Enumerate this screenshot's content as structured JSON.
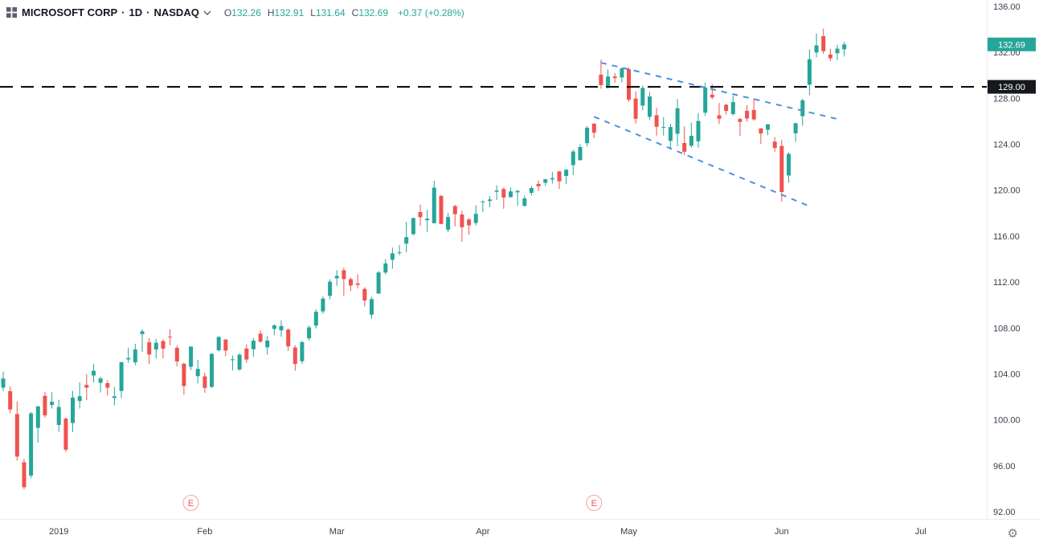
{
  "legend": {
    "symbol": "MICROSOFT CORP",
    "separator": "·",
    "interval": "1D",
    "exchange": "NASDAQ",
    "ohlc": [
      {
        "label": "O",
        "value": "132.26"
      },
      {
        "label": "H",
        "value": "132.91"
      },
      {
        "label": "L",
        "value": "131.64"
      },
      {
        "label": "C",
        "value": "132.69"
      }
    ],
    "change": "+0.37 (+0.28%)",
    "value_color": "#26a69a"
  },
  "price_axis": {
    "ticks": [
      136,
      132,
      128,
      124,
      120,
      116,
      112,
      108,
      104,
      100,
      96,
      92
    ],
    "badges": [
      {
        "name": "last-price-badge",
        "value": "132.69",
        "price": 132.69,
        "bg": "#26a69a",
        "fg": "#ffffff"
      },
      {
        "name": "level-price-badge",
        "value": "129.00",
        "price": 129.0,
        "bg": "#16181e",
        "fg": "#ffffff"
      }
    ]
  },
  "time_axis": {
    "ticks": [
      {
        "label": "2019",
        "index": 8
      },
      {
        "label": "Feb",
        "index": 29
      },
      {
        "label": "Mar",
        "index": 48
      },
      {
        "label": "Apr",
        "index": 69
      },
      {
        "label": "May",
        "index": 90
      },
      {
        "label": "Jun",
        "index": 112
      },
      {
        "label": "Jul",
        "index": 132
      }
    ]
  },
  "chart_data": {
    "type": "candlestick",
    "title": "MICROSOFT CORP",
    "interval": "1D",
    "exchange": "NASDAQ",
    "price_range": {
      "min": 92,
      "max": 136
    },
    "colors": {
      "up": "#26a69a",
      "down": "#ef5350"
    },
    "columns": [
      "date",
      "open",
      "high",
      "low",
      "close"
    ],
    "candles": [
      [
        "2018-12-19",
        102.8,
        104.2,
        102.5,
        103.6
      ],
      [
        "2018-12-20",
        102.5,
        102.9,
        100.6,
        100.9
      ],
      [
        "2018-12-21",
        100.5,
        101.6,
        96.46,
        96.8
      ],
      [
        "2018-12-24",
        96.3,
        96.6,
        93.96,
        94.13
      ],
      [
        "2018-12-26",
        95.14,
        100.69,
        94.9,
        100.56
      ],
      [
        "2018-12-27",
        99.3,
        101.19,
        98.0,
        101.18
      ],
      [
        "2018-12-28",
        102.09,
        102.41,
        100.2,
        100.39
      ],
      [
        "2018-12-31",
        101.29,
        102.4,
        100.98,
        101.57
      ],
      [
        "2019-01-02",
        99.55,
        101.75,
        98.94,
        101.12
      ],
      [
        "2019-01-03",
        100.1,
        100.19,
        97.2,
        97.4
      ],
      [
        "2019-01-04",
        99.72,
        102.51,
        98.93,
        101.93
      ],
      [
        "2019-01-07",
        101.64,
        103.27,
        100.98,
        102.06
      ],
      [
        "2019-01-08",
        103.04,
        103.97,
        101.71,
        102.8
      ],
      [
        "2019-01-09",
        103.86,
        104.88,
        103.24,
        104.27
      ],
      [
        "2019-01-10",
        103.22,
        103.75,
        102.38,
        103.6
      ],
      [
        "2019-01-11",
        103.19,
        103.44,
        102.11,
        102.8
      ],
      [
        "2019-01-14",
        101.9,
        102.87,
        101.26,
        102.05
      ],
      [
        "2019-01-15",
        102.51,
        105.05,
        101.88,
        105.01
      ],
      [
        "2019-01-16",
        105.26,
        106.26,
        104.96,
        105.38
      ],
      [
        "2019-01-17",
        105.0,
        106.63,
        104.76,
        106.12
      ],
      [
        "2019-01-18",
        107.46,
        107.9,
        105.91,
        107.71
      ],
      [
        "2019-01-22",
        106.75,
        107.1,
        104.86,
        105.68
      ],
      [
        "2019-01-23",
        106.12,
        107.04,
        105.34,
        106.71
      ],
      [
        "2019-01-24",
        106.86,
        107.0,
        105.34,
        106.2
      ],
      [
        "2019-01-25",
        107.24,
        107.88,
        106.5,
        107.17
      ],
      [
        "2019-01-28",
        106.26,
        106.48,
        104.66,
        105.08
      ],
      [
        "2019-01-29",
        104.88,
        104.97,
        102.17,
        102.94
      ],
      [
        "2019-01-30",
        104.62,
        106.38,
        104.33,
        106.38
      ],
      [
        "2019-01-31",
        103.8,
        105.22,
        103.18,
        104.43
      ],
      [
        "2019-02-01",
        103.78,
        104.1,
        102.35,
        102.78
      ],
      [
        "2019-02-04",
        102.87,
        105.8,
        102.77,
        105.74
      ],
      [
        "2019-02-05",
        106.06,
        107.27,
        105.96,
        107.22
      ],
      [
        "2019-02-06",
        107.0,
        107.0,
        105.53,
        106.03
      ],
      [
        "2019-02-07",
        105.19,
        105.59,
        104.29,
        105.27
      ],
      [
        "2019-02-08",
        104.39,
        105.78,
        104.26,
        105.67
      ],
      [
        "2019-02-11",
        106.2,
        106.58,
        104.97,
        105.25
      ],
      [
        "2019-02-12",
        106.14,
        107.14,
        105.48,
        106.89
      ],
      [
        "2019-02-13",
        107.5,
        107.78,
        106.71,
        106.81
      ],
      [
        "2019-02-14",
        106.31,
        107.29,
        105.66,
        106.9
      ],
      [
        "2019-02-15",
        107.91,
        108.3,
        107.36,
        108.22
      ],
      [
        "2019-02-19",
        107.79,
        108.66,
        107.23,
        108.17
      ],
      [
        "2019-02-20",
        107.86,
        107.94,
        106.0,
        106.4
      ],
      [
        "2019-02-21",
        106.3,
        106.5,
        104.28,
        104.86
      ],
      [
        "2019-02-22",
        105.1,
        106.9,
        104.85,
        106.76
      ],
      [
        "2019-02-25",
        107.1,
        108.2,
        106.9,
        108.05
      ],
      [
        "2019-02-26",
        108.2,
        109.62,
        107.95,
        109.41
      ],
      [
        "2019-02-27",
        109.45,
        110.75,
        109.22,
        110.56
      ],
      [
        "2019-02-28",
        110.8,
        112.23,
        110.5,
        112.03
      ],
      [
        "2019-03-01",
        112.33,
        113.02,
        111.67,
        112.53
      ],
      [
        "2019-03-04",
        113.02,
        113.25,
        110.8,
        112.26
      ],
      [
        "2019-03-05",
        112.25,
        112.39,
        111.23,
        111.7
      ],
      [
        "2019-03-06",
        111.87,
        112.66,
        111.43,
        111.75
      ],
      [
        "2019-03-07",
        111.4,
        111.55,
        109.87,
        110.39
      ],
      [
        "2019-03-08",
        109.16,
        110.71,
        108.8,
        110.51
      ],
      [
        "2019-03-11",
        110.99,
        112.95,
        110.98,
        112.83
      ],
      [
        "2019-03-12",
        112.82,
        113.99,
        112.65,
        113.62
      ],
      [
        "2019-03-13",
        113.94,
        115.0,
        113.16,
        114.5
      ],
      [
        "2019-03-14",
        114.54,
        115.2,
        114.33,
        114.59
      ],
      [
        "2019-03-15",
        115.34,
        117.25,
        114.59,
        115.91
      ],
      [
        "2019-03-18",
        116.17,
        117.61,
        116.05,
        117.57
      ],
      [
        "2019-03-19",
        118.09,
        118.75,
        116.88,
        117.65
      ],
      [
        "2019-03-20",
        117.39,
        118.28,
        116.38,
        117.52
      ],
      [
        "2019-03-21",
        117.13,
        120.82,
        117.09,
        120.22
      ],
      [
        "2019-03-22",
        119.5,
        119.59,
        117.04,
        117.05
      ],
      [
        "2019-03-25",
        116.56,
        118.01,
        116.32,
        117.66
      ],
      [
        "2019-03-26",
        118.62,
        118.71,
        116.85,
        117.91
      ],
      [
        "2019-03-27",
        117.88,
        118.21,
        115.52,
        116.77
      ],
      [
        "2019-03-28",
        117.44,
        117.58,
        116.13,
        116.93
      ],
      [
        "2019-03-29",
        117.14,
        118.69,
        116.93,
        117.94
      ],
      [
        "2019-04-01",
        118.95,
        119.11,
        118.1,
        119.02
      ],
      [
        "2019-04-02",
        119.06,
        119.48,
        118.52,
        119.19
      ],
      [
        "2019-04-03",
        119.86,
        120.43,
        119.15,
        119.97
      ],
      [
        "2019-04-04",
        120.1,
        120.23,
        118.38,
        119.36
      ],
      [
        "2019-04-05",
        119.39,
        120.23,
        119.37,
        119.89
      ],
      [
        "2019-04-08",
        119.81,
        120.02,
        118.64,
        119.93
      ],
      [
        "2019-04-09",
        118.63,
        119.54,
        118.58,
        119.28
      ],
      [
        "2019-04-10",
        119.76,
        120.35,
        119.54,
        120.19
      ],
      [
        "2019-04-11",
        120.54,
        120.85,
        119.92,
        120.33
      ],
      [
        "2019-04-12",
        120.64,
        120.98,
        120.37,
        120.95
      ],
      [
        "2019-04-15",
        120.94,
        121.58,
        120.57,
        121.05
      ],
      [
        "2019-04-16",
        121.64,
        121.65,
        120.1,
        120.77
      ],
      [
        "2019-04-17",
        121.24,
        121.85,
        120.54,
        121.77
      ],
      [
        "2019-04-18",
        122.19,
        123.52,
        121.3,
        123.37
      ],
      [
        "2019-04-22",
        122.62,
        124.0,
        122.57,
        123.76
      ],
      [
        "2019-04-23",
        124.1,
        125.58,
        123.83,
        125.44
      ],
      [
        "2019-04-24",
        125.79,
        125.85,
        124.52,
        125.01
      ],
      [
        "2019-04-25",
        130.06,
        131.37,
        128.83,
        129.15
      ],
      [
        "2019-04-26",
        129.07,
        130.52,
        128.83,
        129.89
      ],
      [
        "2019-04-29",
        129.9,
        130.18,
        129.35,
        129.77
      ],
      [
        "2019-04-30",
        129.81,
        130.7,
        129.39,
        130.6
      ],
      [
        "2019-05-01",
        130.53,
        130.65,
        127.7,
        127.88
      ],
      [
        "2019-05-02",
        127.98,
        128.61,
        125.8,
        126.21
      ],
      [
        "2019-05-03",
        127.36,
        129.1,
        126.96,
        128.9
      ],
      [
        "2019-05-06",
        126.39,
        128.56,
        126.11,
        128.15
      ],
      [
        "2019-05-07",
        126.52,
        127.18,
        124.74,
        125.52
      ],
      [
        "2019-05-08",
        125.44,
        126.37,
        124.75,
        125.51
      ],
      [
        "2019-05-09",
        124.29,
        125.79,
        123.57,
        125.5
      ],
      [
        "2019-05-10",
        124.91,
        127.93,
        123.82,
        127.13
      ],
      [
        "2019-05-13",
        124.11,
        125.55,
        123.04,
        123.35
      ],
      [
        "2019-05-14",
        123.87,
        125.88,
        123.7,
        124.73
      ],
      [
        "2019-05-15",
        124.26,
        126.71,
        123.7,
        126.02
      ],
      [
        "2019-05-16",
        126.75,
        129.38,
        126.46,
        128.93
      ],
      [
        "2019-05-17",
        128.31,
        129.25,
        127.92,
        128.07
      ],
      [
        "2019-05-20",
        126.52,
        127.59,
        125.76,
        126.22
      ],
      [
        "2019-05-21",
        127.43,
        127.53,
        126.58,
        126.9
      ],
      [
        "2019-05-22",
        126.62,
        128.24,
        126.52,
        127.67
      ],
      [
        "2019-05-23",
        126.2,
        126.29,
        124.74,
        125.94
      ],
      [
        "2019-05-24",
        126.91,
        127.41,
        125.97,
        126.24
      ],
      [
        "2019-05-28",
        126.98,
        128.0,
        126.05,
        126.16
      ],
      [
        "2019-05-29",
        125.38,
        125.39,
        124.04,
        124.94
      ],
      [
        "2019-05-30",
        125.26,
        125.76,
        124.78,
        125.73
      ],
      [
        "2019-05-31",
        124.23,
        124.62,
        123.32,
        123.68
      ],
      [
        "2019-06-03",
        123.85,
        124.37,
        119.01,
        119.84
      ],
      [
        "2019-06-04",
        121.28,
        123.28,
        120.65,
        123.16
      ],
      [
        "2019-06-05",
        124.95,
        125.87,
        124.21,
        125.83
      ],
      [
        "2019-06-06",
        126.44,
        127.97,
        125.6,
        127.82
      ],
      [
        "2019-06-07",
        129.19,
        132.25,
        128.26,
        131.4
      ],
      [
        "2019-06-10",
        131.99,
        133.66,
        131.57,
        132.6
      ],
      [
        "2019-06-11",
        133.41,
        134.07,
        131.87,
        132.1
      ],
      [
        "2019-06-12",
        131.81,
        132.32,
        131.24,
        131.49
      ],
      [
        "2019-06-13",
        131.92,
        132.67,
        131.31,
        132.32
      ],
      [
        "2019-06-14",
        132.26,
        132.91,
        131.64,
        132.69
      ]
    ],
    "level_line": {
      "price": 129.0,
      "color": "#000000",
      "style": "dashed"
    },
    "trendlines": [
      {
        "start_index": 86,
        "start_price": 131.1,
        "end_index": 120,
        "end_price": 126.2,
        "color": "#4a90e2",
        "style": "dashed"
      },
      {
        "start_index": 85,
        "start_price": 126.4,
        "end_index": 116,
        "end_price": 118.6,
        "color": "#4a90e2",
        "style": "dashed"
      }
    ],
    "earnings_markers": [
      {
        "label": "E",
        "index": 27
      },
      {
        "label": "E",
        "index": 85
      }
    ],
    "marker_color": "#ef5350"
  },
  "controls": {
    "gear_glyph": "⚙"
  }
}
